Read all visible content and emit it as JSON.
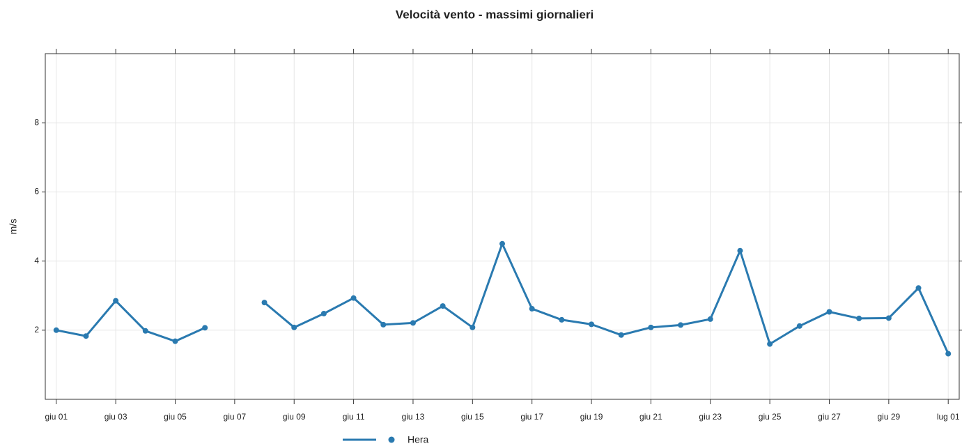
{
  "chart_data": {
    "type": "line",
    "title": "Velocità vento - massimi giornalieri",
    "ylabel": "m/s",
    "categories": [
      "giu 01",
      null,
      "giu 03",
      null,
      "giu 05",
      null,
      "giu 07",
      null,
      "giu 09",
      null,
      "giu 11",
      null,
      "giu 13",
      null,
      "giu 15",
      null,
      "giu 17",
      null,
      "giu 19",
      null,
      "giu 21",
      null,
      "giu 23",
      null,
      "giu 25",
      null,
      "giu 27",
      null,
      "giu 29",
      null,
      "lug 01"
    ],
    "series": [
      {
        "name": "Hera",
        "color": "#2a7ab0",
        "values": [
          2.0,
          1.83,
          2.85,
          1.98,
          1.68,
          2.07,
          null,
          2.8,
          2.08,
          2.48,
          2.93,
          2.16,
          2.21,
          2.7,
          2.08,
          4.5,
          2.62,
          2.3,
          2.17,
          1.86,
          2.08,
          2.15,
          2.32,
          4.3,
          1.6,
          2.12,
          2.53,
          2.34,
          2.35,
          3.22,
          1.32
        ]
      }
    ],
    "ylim": [
      0,
      10
    ],
    "yticks": [
      2,
      4,
      6,
      8
    ],
    "grid": true,
    "legend": "bottom"
  }
}
